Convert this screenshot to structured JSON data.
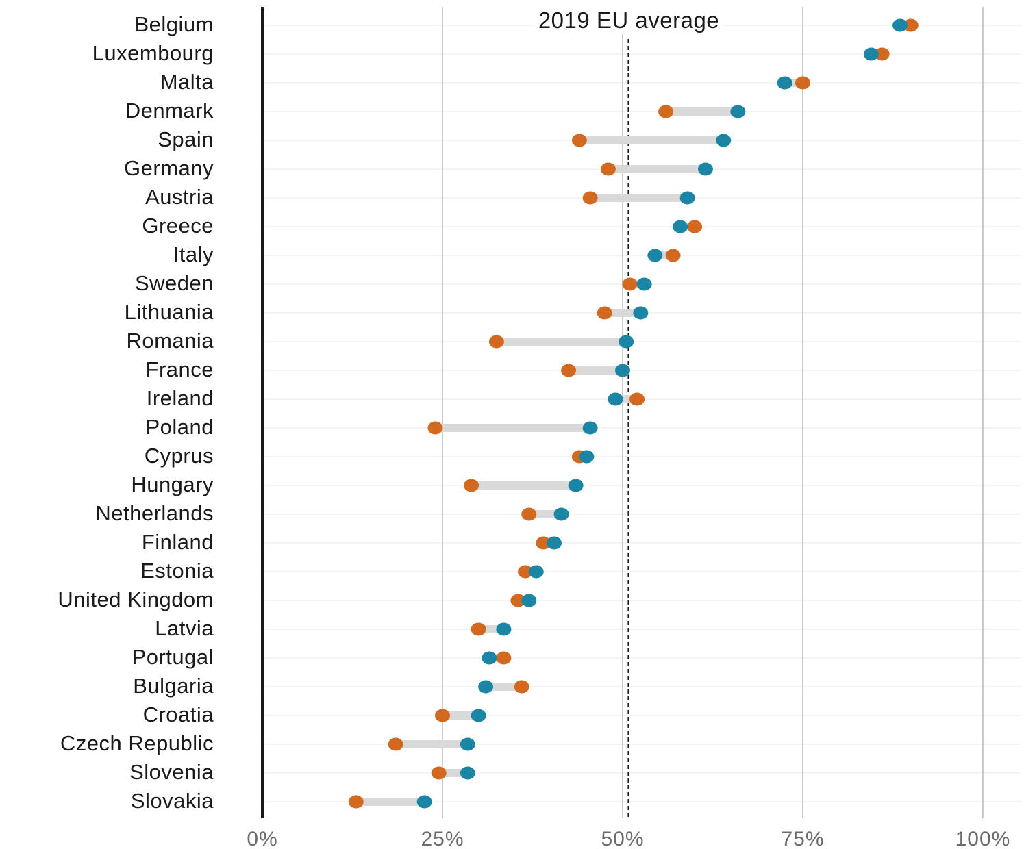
{
  "chart_data": {
    "type": "dumbbell",
    "annotation": "2019 EU average",
    "reference_line": 50.8,
    "xlim": [
      0,
      100
    ],
    "x_ticks": [
      {
        "value": 0,
        "label": "0%"
      },
      {
        "value": 25,
        "label": "25%"
      },
      {
        "value": 50,
        "label": "50%"
      },
      {
        "value": 75,
        "label": "75%"
      },
      {
        "value": 100,
        "label": "100%"
      }
    ],
    "colors": {
      "orange": "#d2691e",
      "teal": "#1b85a5",
      "bar": "#d9d9d9"
    },
    "categories": [
      "Belgium",
      "Luxembourg",
      "Malta",
      "Denmark",
      "Spain",
      "Germany",
      "Austria",
      "Greece",
      "Italy",
      "Sweden",
      "Lithuania",
      "Romania",
      "France",
      "Ireland",
      "Poland",
      "Cyprus",
      "Hungary",
      "Netherlands",
      "Finland",
      "Estonia",
      "United Kingdom",
      "Latvia",
      "Portugal",
      "Bulgaria",
      "Croatia",
      "Czech Republic",
      "Slovenia",
      "Slovakia"
    ],
    "series": [
      {
        "color": "orange",
        "values": [
          90,
          86,
          75,
          56,
          44,
          48,
          45.5,
          60,
          57,
          51,
          47.5,
          32.5,
          42.5,
          52,
          24,
          44,
          29,
          37,
          39,
          36.5,
          35.5,
          30,
          33.5,
          36,
          25,
          18.5,
          24.5,
          13
        ]
      },
      {
        "color": "teal",
        "values": [
          88.5,
          84.5,
          72.5,
          66,
          64,
          61.5,
          59,
          58,
          54.5,
          53,
          52.5,
          50.5,
          50,
          49,
          45.5,
          45,
          43.5,
          41.5,
          40.5,
          38,
          37,
          33.5,
          31.5,
          31,
          30,
          28.5,
          28.5,
          22.5
        ]
      }
    ]
  }
}
